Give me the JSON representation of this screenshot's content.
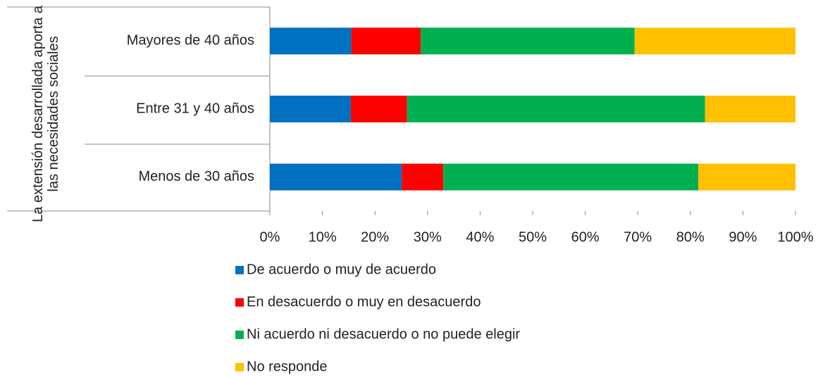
{
  "chart_data": {
    "type": "stacked_bar_horizontal",
    "y_label": "La extensión desarrollada aporta a las necesidades sociales",
    "categories": [
      "Mayores de 40 años",
      "Entre 31 y 40 años",
      "Menos de 30 años"
    ],
    "series": [
      {
        "name": "De acuerdo o muy de acuerdo",
        "color": "#0070c0",
        "values": [
          15.5,
          15.4,
          25.1
        ]
      },
      {
        "name": "En desacuerdo o muy en desacuerdo",
        "color": "#ff0000",
        "values": [
          13.2,
          10.7,
          7.9
        ]
      },
      {
        "name": "Ni acuerdo ni desacuerdo o no puede elegir",
        "color": "#00b050",
        "values": [
          40.7,
          56.7,
          48.5
        ]
      },
      {
        "name": "No responde",
        "color": "#ffc000",
        "values": [
          30.6,
          17.2,
          18.5
        ]
      }
    ],
    "xlim": [
      0,
      100
    ],
    "xticks": [
      {
        "value": 0,
        "label": "0%"
      },
      {
        "value": 10,
        "label": "10%"
      },
      {
        "value": 20,
        "label": "20%"
      },
      {
        "value": 30,
        "label": "30%"
      },
      {
        "value": 40,
        "label": "40%"
      },
      {
        "value": 50,
        "label": "50%"
      },
      {
        "value": 60,
        "label": "60%"
      },
      {
        "value": 70,
        "label": "70%"
      },
      {
        "value": 80,
        "label": "80%"
      },
      {
        "value": 90,
        "label": "90%"
      },
      {
        "value": 100,
        "label": "100%"
      }
    ],
    "legend": "bottom"
  }
}
